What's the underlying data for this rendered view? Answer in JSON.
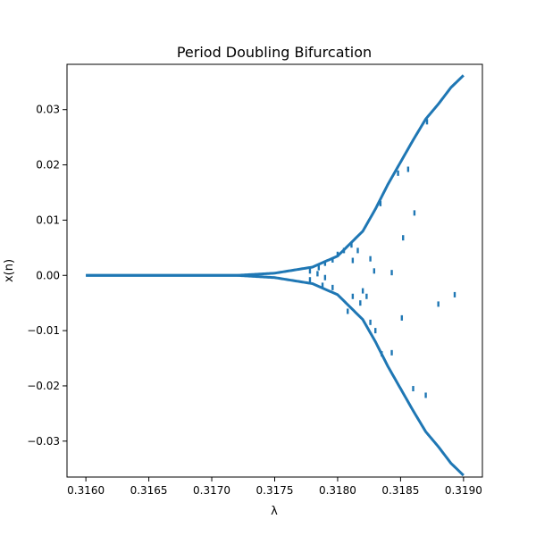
{
  "chart_data": {
    "type": "scatter",
    "title": "Period Doubling Bifurcation",
    "xlabel": "λ",
    "ylabel": "x(n)",
    "xlim": [
      0.31585,
      0.31915
    ],
    "ylim": [
      -0.0365,
      0.0382
    ],
    "grid": false,
    "legend": "none",
    "series_color": "#1f77b4",
    "xticks": [
      {
        "value": 0.316,
        "label": "0.3160"
      },
      {
        "value": 0.3165,
        "label": "0.3165"
      },
      {
        "value": 0.317,
        "label": "0.3170"
      },
      {
        "value": 0.3175,
        "label": "0.3175"
      },
      {
        "value": 0.318,
        "label": "0.3180"
      },
      {
        "value": 0.3185,
        "label": "0.3185"
      },
      {
        "value": 0.319,
        "label": "0.3190"
      }
    ],
    "yticks": [
      {
        "value": 0.03,
        "label": "0.03"
      },
      {
        "value": 0.02,
        "label": "0.02"
      },
      {
        "value": 0.01,
        "label": "0.01"
      },
      {
        "value": 0.0,
        "label": "0.00"
      },
      {
        "value": -0.01,
        "label": "−0.01"
      },
      {
        "value": -0.02,
        "label": "−0.02"
      },
      {
        "value": -0.03,
        "label": "−0.03"
      }
    ],
    "branch_amplitude": [
      [
        0.316,
        0.0
      ],
      [
        0.3172,
        0.0
      ],
      [
        0.3175,
        0.0004
      ],
      [
        0.3178,
        0.0015
      ],
      [
        0.318,
        0.0035
      ],
      [
        0.3182,
        0.008
      ],
      [
        0.3183,
        0.012
      ],
      [
        0.3184,
        0.0165
      ],
      [
        0.3185,
        0.0205
      ],
      [
        0.3186,
        0.0245
      ],
      [
        0.3187,
        0.0283
      ],
      [
        0.3188,
        0.031
      ],
      [
        0.3189,
        0.034
      ],
      [
        0.319,
        0.0362
      ]
    ],
    "stray_points": [
      [
        0.31778,
        0.0008
      ],
      [
        0.31785,
        0.0014
      ],
      [
        0.3179,
        0.0022
      ],
      [
        0.31796,
        0.0028
      ],
      [
        0.318,
        0.0038
      ],
      [
        0.31805,
        0.0045
      ],
      [
        0.31811,
        0.0055
      ],
      [
        0.31812,
        0.0027
      ],
      [
        0.31816,
        0.0045
      ],
      [
        0.31826,
        0.003
      ],
      [
        0.31829,
        0.0008
      ],
      [
        0.31834,
        0.013
      ],
      [
        0.31843,
        0.0005
      ],
      [
        0.31852,
        0.0068
      ],
      [
        0.31861,
        0.0113
      ],
      [
        0.31856,
        0.0192
      ],
      [
        0.31848,
        0.0185
      ],
      [
        0.31871,
        0.0278
      ],
      [
        0.3188,
        -0.0052
      ],
      [
        0.31893,
        -0.0035
      ],
      [
        0.3187,
        -0.0217
      ],
      [
        0.3186,
        -0.0205
      ],
      [
        0.31851,
        -0.0077
      ],
      [
        0.31843,
        -0.014
      ],
      [
        0.31835,
        -0.0142
      ],
      [
        0.31823,
        -0.0038
      ],
      [
        0.3182,
        -0.0028
      ],
      [
        0.31812,
        -0.0038
      ],
      [
        0.31818,
        -0.005
      ],
      [
        0.31796,
        -0.0022
      ],
      [
        0.31788,
        -0.0018
      ],
      [
        0.31778,
        -0.0008
      ],
      [
        0.31808,
        -0.0065
      ],
      [
        0.31826,
        -0.0085
      ],
      [
        0.3183,
        -0.01
      ],
      [
        0.31784,
        0.0003
      ],
      [
        0.3179,
        -0.0004
      ]
    ]
  }
}
